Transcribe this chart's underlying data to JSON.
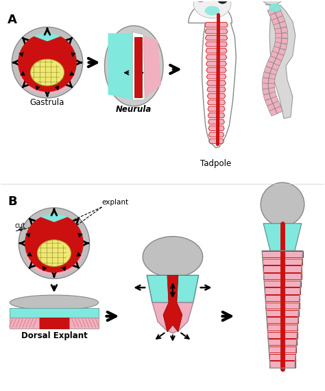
{
  "bg_color": "#ffffff",
  "label_A": "A",
  "label_B": "B",
  "label_gastrula": "Gastrula",
  "label_neurula": "Neurula",
  "label_tadpole": "Tadpole",
  "label_dorsal_explant": "Dorsal Explant",
  "label_cut": "cut",
  "label_explant": "explant",
  "color_gray": "#c0c0c0",
  "color_cyan": "#80e8dc",
  "color_pink": "#f0b0c0",
  "color_red": "#cc1010",
  "color_yellow": "#f0e870",
  "color_black": "#000000",
  "color_dark_gray": "#808080",
  "color_light_gray": "#d8d8d8",
  "color_outline": "#555555",
  "color_white": "#ffffff"
}
